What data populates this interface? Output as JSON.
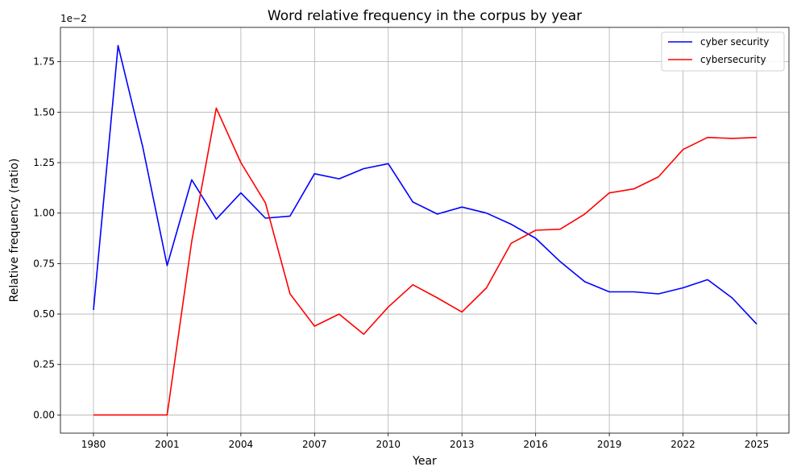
{
  "chart_data": {
    "type": "line",
    "title": "Word relative frequency in the corpus by year",
    "xlabel": "Year",
    "ylabel": "Relative frequency (ratio)",
    "y_offset_text": "1e−2",
    "categories": [
      "1980",
      "1990",
      "2000",
      "2001",
      "2002",
      "2003",
      "2004",
      "2005",
      "2006",
      "2007",
      "2008",
      "2009",
      "2010",
      "2011",
      "2012",
      "2013",
      "2014",
      "2015",
      "2016",
      "2017",
      "2018",
      "2019",
      "2020",
      "2021",
      "2022",
      "2023",
      "2024",
      "2025"
    ],
    "x_tick_labels": [
      "1980",
      "2001",
      "2004",
      "2007",
      "2010",
      "2013",
      "2016",
      "2019",
      "2022",
      "2025"
    ],
    "x_tick_indices": [
      0,
      3,
      6,
      9,
      12,
      15,
      18,
      21,
      24,
      27
    ],
    "y_ticks": [
      0.0,
      0.25,
      0.5,
      0.75,
      1.0,
      1.25,
      1.5,
      1.75
    ],
    "y_tick_labels": [
      "0.00",
      "0.25",
      "0.50",
      "0.75",
      "1.00",
      "1.25",
      "1.50",
      "1.75"
    ],
    "ylim": [
      -0.09,
      1.92
    ],
    "grid": true,
    "legend_position": "top-right",
    "series": [
      {
        "name": "cyber security",
        "color": "#0000ff",
        "values": [
          0.52,
          1.83,
          1.33,
          0.74,
          1.165,
          0.97,
          1.1,
          0.975,
          0.985,
          1.195,
          1.17,
          1.22,
          1.245,
          1.055,
          0.995,
          1.03,
          1.0,
          0.945,
          0.875,
          0.76,
          0.66,
          0.61,
          0.61,
          0.6,
          0.63,
          0.67,
          0.58,
          0.45
        ]
      },
      {
        "name": "cybersecurity",
        "color": "#ff0000",
        "values": [
          0.0,
          0.0,
          0.0,
          0.0,
          0.86,
          1.52,
          1.25,
          1.05,
          0.6,
          0.44,
          0.5,
          0.4,
          0.535,
          0.645,
          0.58,
          0.51,
          0.63,
          0.85,
          0.915,
          0.92,
          0.995,
          1.1,
          1.12,
          1.18,
          1.315,
          1.375,
          1.37,
          1.375
        ]
      }
    ]
  }
}
